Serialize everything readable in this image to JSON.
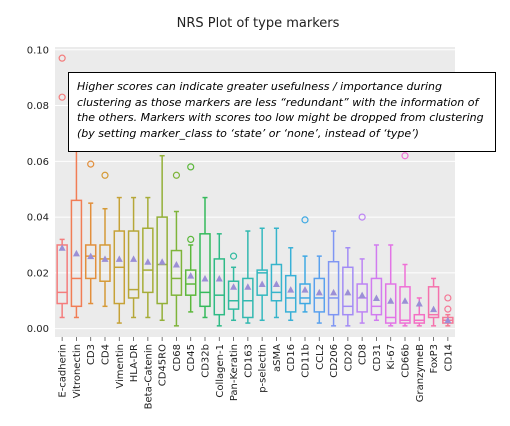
{
  "chart_data": {
    "type": "box",
    "title": "NRS Plot of type markers",
    "xlabel": "",
    "ylabel": "",
    "ylim": [
      -0.003,
      0.101
    ],
    "yticks": [
      "0.00",
      "0.02",
      "0.04",
      "0.06",
      "0.08",
      "0.10"
    ],
    "ytick_values": [
      0.0,
      0.02,
      0.04,
      0.06,
      0.08,
      0.1
    ],
    "grid": true,
    "background": "#ebebeb",
    "mean_marker_color": "#9b8fd6",
    "categories": [
      "E-cadherin",
      "Vitronectin",
      "CD3",
      "CD4",
      "Vimentin",
      "HLA-DR",
      "Beta-Catenin",
      "CD45RO",
      "CD68",
      "CD45",
      "CD32b",
      "Collagen-1",
      "Pan-Keratin",
      "CD163",
      "p-selectin",
      "aSMA",
      "CD16",
      "CD11b",
      "CCL2",
      "CD206",
      "CD20",
      "CD8",
      "CD31",
      "Ki-67",
      "CD66b",
      "GranzymeB",
      "FoxP3",
      "CD14"
    ],
    "colors": [
      "#f47c7c",
      "#f17d55",
      "#e28f3c",
      "#d59a36",
      "#c6a237",
      "#b6a738",
      "#a6ad38",
      "#93b038",
      "#7eb43a",
      "#5cb83c",
      "#35ba5b",
      "#2fbb86",
      "#31baa0",
      "#33b9b0",
      "#34b8bf",
      "#36b4cb",
      "#39b0d7",
      "#3fa9e3",
      "#5aa1ee",
      "#7f96f3",
      "#a38cf5",
      "#bd84f4",
      "#d17bf0",
      "#e274e6",
      "#ef70d6",
      "#f46fc4",
      "#f572ad",
      "#f57896"
    ],
    "boxes": [
      {
        "whislo": 0.004,
        "q1": 0.009,
        "med": 0.013,
        "q3": 0.03,
        "whishi": 0.032,
        "mean": 0.029,
        "fliers": [
          0.083,
          0.097
        ]
      },
      {
        "whislo": 0.004,
        "q1": 0.008,
        "med": 0.018,
        "q3": 0.046,
        "whishi": 0.071,
        "mean": 0.027,
        "fliers": []
      },
      {
        "whislo": 0.009,
        "q1": 0.018,
        "med": 0.026,
        "q3": 0.03,
        "whishi": 0.045,
        "mean": 0.026,
        "fliers": [
          0.059
        ]
      },
      {
        "whislo": 0.008,
        "q1": 0.017,
        "med": 0.025,
        "q3": 0.03,
        "whishi": 0.043,
        "mean": 0.025,
        "fliers": [
          0.055
        ]
      },
      {
        "whislo": 0.002,
        "q1": 0.009,
        "med": 0.022,
        "q3": 0.035,
        "whishi": 0.047,
        "mean": 0.025,
        "fliers": []
      },
      {
        "whislo": 0.004,
        "q1": 0.011,
        "med": 0.014,
        "q3": 0.035,
        "whishi": 0.047,
        "mean": 0.025,
        "fliers": []
      },
      {
        "whislo": 0.004,
        "q1": 0.013,
        "med": 0.021,
        "q3": 0.036,
        "whishi": 0.047,
        "mean": 0.024,
        "fliers": []
      },
      {
        "whislo": 0.003,
        "q1": 0.009,
        "med": 0.023,
        "q3": 0.04,
        "whishi": 0.062,
        "mean": 0.024,
        "fliers": []
      },
      {
        "whislo": 0.001,
        "q1": 0.012,
        "med": 0.018,
        "q3": 0.028,
        "whishi": 0.042,
        "mean": 0.023,
        "fliers": [
          0.055
        ]
      },
      {
        "whislo": 0.006,
        "q1": 0.012,
        "med": 0.016,
        "q3": 0.021,
        "whishi": 0.03,
        "mean": 0.019,
        "fliers": [
          0.032,
          0.058
        ]
      },
      {
        "whislo": 0.004,
        "q1": 0.008,
        "med": 0.013,
        "q3": 0.034,
        "whishi": 0.047,
        "mean": 0.018,
        "fliers": []
      },
      {
        "whislo": 0.001,
        "q1": 0.005,
        "med": 0.012,
        "q3": 0.025,
        "whishi": 0.034,
        "mean": 0.018,
        "fliers": [
          0.065
        ]
      },
      {
        "whislo": 0.003,
        "q1": 0.007,
        "med": 0.01,
        "q3": 0.017,
        "whishi": 0.022,
        "mean": 0.015,
        "fliers": [
          0.026
        ]
      },
      {
        "whislo": 0.002,
        "q1": 0.004,
        "med": 0.01,
        "q3": 0.018,
        "whishi": 0.035,
        "mean": 0.015,
        "fliers": []
      },
      {
        "whislo": 0.003,
        "q1": 0.012,
        "med": 0.02,
        "q3": 0.021,
        "whishi": 0.036,
        "mean": 0.016,
        "fliers": []
      },
      {
        "whislo": 0.004,
        "q1": 0.01,
        "med": 0.013,
        "q3": 0.023,
        "whishi": 0.036,
        "mean": 0.016,
        "fliers": []
      },
      {
        "whislo": 0.003,
        "q1": 0.006,
        "med": 0.011,
        "q3": 0.019,
        "whishi": 0.029,
        "mean": 0.014,
        "fliers": []
      },
      {
        "whislo": 0.006,
        "q1": 0.009,
        "med": 0.011,
        "q3": 0.016,
        "whishi": 0.026,
        "mean": 0.014,
        "fliers": [
          0.039
        ]
      },
      {
        "whislo": 0.002,
        "q1": 0.006,
        "med": 0.011,
        "q3": 0.018,
        "whishi": 0.026,
        "mean": 0.013,
        "fliers": []
      },
      {
        "whislo": 0.001,
        "q1": 0.005,
        "med": 0.011,
        "q3": 0.024,
        "whishi": 0.035,
        "mean": 0.013,
        "fliers": []
      },
      {
        "whislo": 0.001,
        "q1": 0.005,
        "med": 0.008,
        "q3": 0.022,
        "whishi": 0.029,
        "mean": 0.013,
        "fliers": []
      },
      {
        "whislo": 0.002,
        "q1": 0.006,
        "med": 0.011,
        "q3": 0.016,
        "whishi": 0.025,
        "mean": 0.012,
        "fliers": [
          0.04
        ]
      },
      {
        "whislo": 0.003,
        "q1": 0.005,
        "med": 0.008,
        "q3": 0.018,
        "whishi": 0.03,
        "mean": 0.011,
        "fliers": []
      },
      {
        "whislo": 0.001,
        "q1": 0.002,
        "med": 0.004,
        "q3": 0.016,
        "whishi": 0.03,
        "mean": 0.01,
        "fliers": []
      },
      {
        "whislo": 0.001,
        "q1": 0.002,
        "med": 0.003,
        "q3": 0.015,
        "whishi": 0.023,
        "mean": 0.01,
        "fliers": [
          0.062
        ]
      },
      {
        "whislo": 0.001,
        "q1": 0.002,
        "med": 0.003,
        "q3": 0.005,
        "whishi": 0.011,
        "mean": 0.009,
        "fliers": []
      },
      {
        "whislo": 0.001,
        "q1": 0.004,
        "med": 0.005,
        "q3": 0.015,
        "whishi": 0.018,
        "mean": 0.007,
        "fliers": []
      },
      {
        "whislo": 0.001,
        "q1": 0.002,
        "med": 0.003,
        "q3": 0.004,
        "whishi": 0.005,
        "mean": 0.003,
        "fliers": [
          0.007,
          0.011
        ]
      }
    ]
  },
  "annotation": {
    "text": "Higher scores can indicate greater usefulness /  importance during clustering as those markers are less “redundant” with the information of the  others. Markers with scores too low might be dropped from clustering (by setting marker_class to ‘state’ or ‘none’, instead of ‘type’)"
  }
}
